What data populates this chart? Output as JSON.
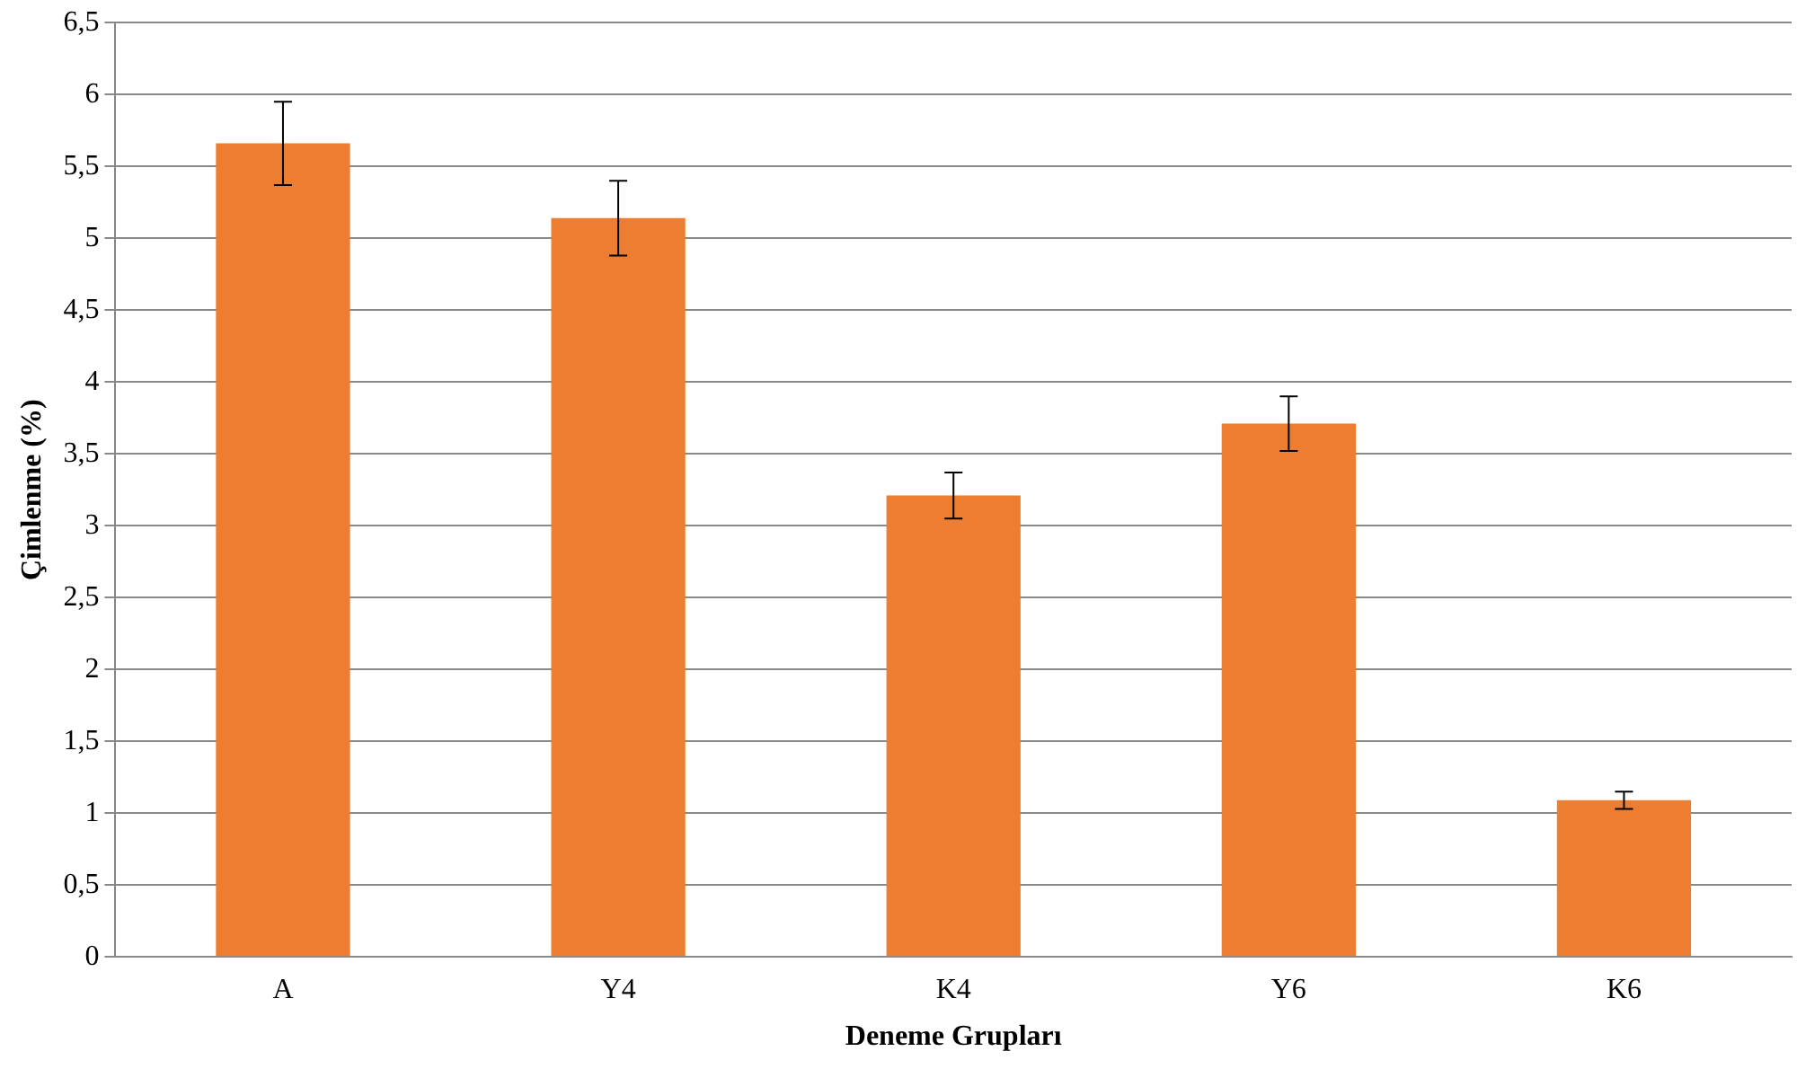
{
  "chart_data": {
    "type": "bar",
    "xlabel": "Deneme Grupları",
    "ylabel": "Çimlenme (%)",
    "categories": [
      "A",
      "Y4",
      "K4",
      "Y6",
      "K6"
    ],
    "values": [
      5.66,
      5.14,
      3.21,
      3.71,
      1.09
    ],
    "errors": [
      0.29,
      0.26,
      0.16,
      0.19,
      0.06
    ],
    "color": "#ed7d31",
    "ylim": [
      0,
      6.5
    ],
    "yticks": [
      0,
      {
        "value": 0.5,
        "label": "0,5"
      },
      1,
      {
        "value": 1.5,
        "label": "1,5"
      },
      2,
      {
        "value": 2.5,
        "label": "2,5"
      },
      3,
      {
        "value": 3.5,
        "label": "3,5"
      },
      4,
      {
        "value": 4.5,
        "label": "4,5"
      },
      5,
      {
        "value": 5.5,
        "label": "5,5"
      },
      6,
      {
        "value": 6.5,
        "label": "6,5"
      }
    ],
    "grid": "y",
    "legend": false
  }
}
